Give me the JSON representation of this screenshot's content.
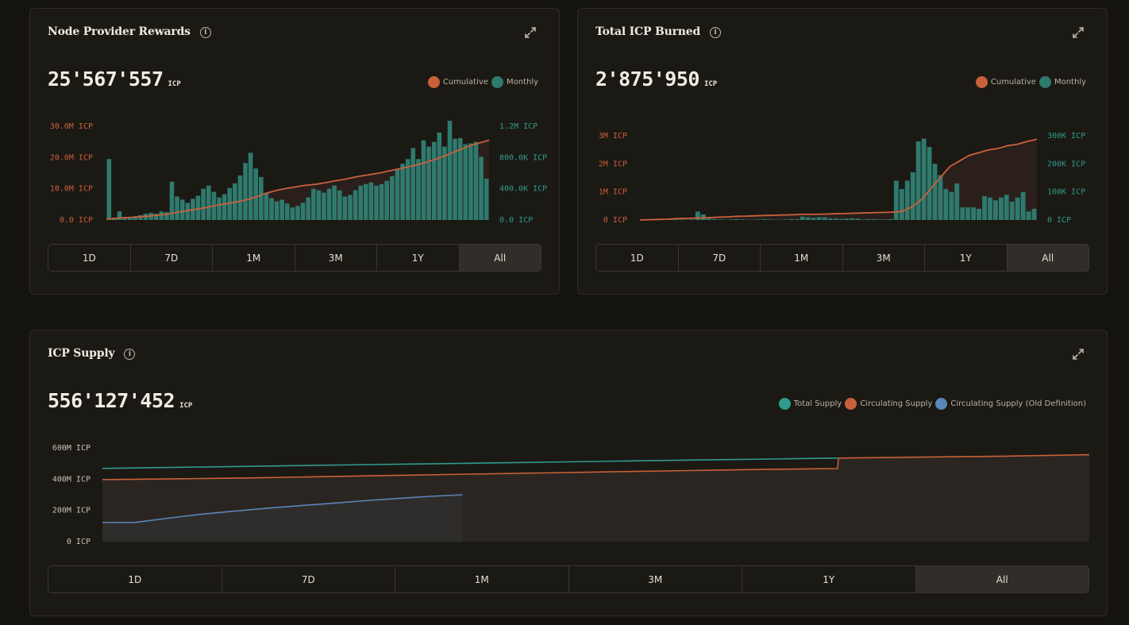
{
  "colors": {
    "cumulative": "#c9603c",
    "monthly": "#2f7a6e",
    "monthly_text": "#2f9b8c",
    "total_supply": "#2f9b8c",
    "circulating": "#c9603c",
    "old_definition": "#5a86b8",
    "active_button_bg": "#312e29"
  },
  "npr": {
    "title": "Node Provider Rewards",
    "value": "25'567'557",
    "unit": "ICP",
    "legend": [
      "Cumulative",
      "Monthly"
    ],
    "ranges": [
      "1D",
      "7D",
      "1M",
      "3M",
      "1Y",
      "All"
    ],
    "active_range": "All"
  },
  "burn": {
    "title": "Total ICP Burned",
    "value": "2'875'950",
    "unit": "ICP",
    "legend": [
      "Cumulative",
      "Monthly"
    ],
    "ranges": [
      "1D",
      "7D",
      "1M",
      "3M",
      "1Y",
      "All"
    ],
    "active_range": "All"
  },
  "supply": {
    "title": "ICP Supply",
    "value": "556'127'452",
    "unit": "ICP",
    "legend": [
      "Total Supply",
      "Circulating Supply",
      "Circulating Supply (Old Definition)"
    ],
    "ranges": [
      "1D",
      "7D",
      "1M",
      "3M",
      "1Y",
      "All"
    ],
    "active_range": "All"
  },
  "chart_data": [
    {
      "type": "bar",
      "title": "Node Provider Rewards",
      "left_ticks": [
        "30.0M ICP",
        "20.0M ICP",
        "10.0M ICP",
        "0.0 ICP"
      ],
      "right_ticks": [
        "1.2M ICP",
        "800.0K ICP",
        "400.0K ICP",
        "0.0 ICP"
      ],
      "left_ylim": [
        0,
        30000000
      ],
      "right_ylim": [
        0,
        1200000
      ],
      "series": [
        {
          "name": "Monthly",
          "type": "bar",
          "axis": "right",
          "values": [
            780000,
            30000,
            110000,
            20000,
            40000,
            50000,
            60000,
            80000,
            90000,
            80000,
            110000,
            100000,
            490000,
            300000,
            260000,
            220000,
            270000,
            310000,
            400000,
            440000,
            360000,
            290000,
            330000,
            410000,
            470000,
            570000,
            730000,
            860000,
            660000,
            550000,
            350000,
            280000,
            240000,
            260000,
            210000,
            160000,
            180000,
            220000,
            290000,
            400000,
            380000,
            350000,
            400000,
            440000,
            380000,
            300000,
            320000,
            380000,
            440000,
            460000,
            480000,
            440000,
            460000,
            500000,
            560000,
            650000,
            720000,
            780000,
            920000,
            780000,
            1020000,
            940000,
            1000000,
            1120000,
            940000,
            1270000,
            1040000,
            1050000,
            970000,
            980000,
            1000000,
            810000,
            530000
          ]
        },
        {
          "name": "Cumulative",
          "type": "line",
          "axis": "left",
          "values": [
            300000,
            400000,
            600000,
            700000,
            800000,
            900000,
            1100000,
            1200000,
            1400000,
            1600000,
            1800000,
            2000000,
            2400000,
            2700000,
            3000000,
            3300000,
            3600000,
            3900000,
            4300000,
            4700000,
            5000000,
            5300000,
            5600000,
            6000000,
            6400000,
            6900000,
            7500000,
            8200000,
            8800000,
            9300000,
            9700000,
            10100000,
            10400000,
            10700000,
            11000000,
            11200000,
            11400000,
            11700000,
            12000000,
            12400000,
            12700000,
            13000000,
            13400000,
            13800000,
            14100000,
            14400000,
            14700000,
            15000000,
            15400000,
            15800000,
            16200000,
            16600000,
            17000000,
            17400000,
            17900000,
            18400000,
            19000000,
            19600000,
            20300000,
            21000000,
            21800000,
            22500000,
            23200000,
            24000000,
            24500000,
            25000000,
            25567557
          ]
        }
      ]
    },
    {
      "type": "bar",
      "title": "Total ICP Burned",
      "left_ticks": [
        "3M ICP",
        "2M ICP",
        "1M ICP",
        "0 ICP"
      ],
      "right_ticks": [
        "300K ICP",
        "200K ICP",
        "100K ICP",
        "0 ICP"
      ],
      "left_ylim": [
        0,
        3000000
      ],
      "right_ylim": [
        0,
        300000
      ],
      "series": [
        {
          "name": "Monthly",
          "type": "bar",
          "axis": "right",
          "values": [
            1000,
            2000,
            3000,
            5000,
            2000,
            3000,
            2000,
            2000,
            1000,
            2000,
            30000,
            20000,
            5000,
            3000,
            2000,
            1000,
            2000,
            3000,
            2000,
            1000,
            1000,
            2000,
            3000,
            2000,
            1000,
            1000,
            2000,
            3000,
            3000,
            12000,
            10000,
            8000,
            10000,
            10000,
            6000,
            5000,
            4000,
            5000,
            6000,
            5000,
            2000,
            3000,
            3000,
            2000,
            2000,
            3000,
            140000,
            110000,
            140000,
            170000,
            280000,
            290000,
            260000,
            200000,
            160000,
            110000,
            100000,
            130000,
            45000,
            45000,
            45000,
            40000,
            85000,
            80000,
            70000,
            80000,
            90000,
            65000,
            80000,
            100000,
            30000,
            40000
          ]
        },
        {
          "name": "Cumulative",
          "type": "line",
          "axis": "left",
          "values": [
            0,
            10000,
            20000,
            30000,
            50000,
            60000,
            70000,
            80000,
            100000,
            110000,
            130000,
            140000,
            150000,
            160000,
            170000,
            180000,
            190000,
            200000,
            200000,
            210000,
            220000,
            230000,
            240000,
            250000,
            260000,
            270000,
            280000,
            300000,
            450000,
            700000,
            1100000,
            1500000,
            1900000,
            2100000,
            2300000,
            2400000,
            2500000,
            2550000,
            2650000,
            2700000,
            2800000,
            2875950
          ]
        }
      ]
    },
    {
      "type": "line",
      "title": "ICP Supply",
      "y_ticks": [
        "600M ICP",
        "400M ICP",
        "200M ICP",
        "0 ICP"
      ],
      "ylim": [
        0,
        600000000
      ],
      "series": [
        {
          "name": "Total Supply",
          "values": [
            469000000,
            475000000,
            481000000,
            487000000,
            493000000,
            499000000,
            505000000,
            511000000,
            517000000,
            523000000,
            529000000,
            535000000
          ]
        },
        {
          "name": "Circulating Supply",
          "values": [
            397000000,
            402000000,
            408000000,
            416000000,
            424000000,
            432000000,
            440000000,
            448000000,
            455000000,
            462000000,
            468000000,
            535000000,
            541000000,
            547000000,
            556127452
          ]
        },
        {
          "name": "Circulating Supply (Old Definition)",
          "values": [
            122000000,
            123000000,
            150000000,
            175000000,
            195000000,
            213000000,
            230000000,
            245000000,
            262000000,
            276000000,
            290000000,
            300000000
          ]
        }
      ]
    }
  ]
}
